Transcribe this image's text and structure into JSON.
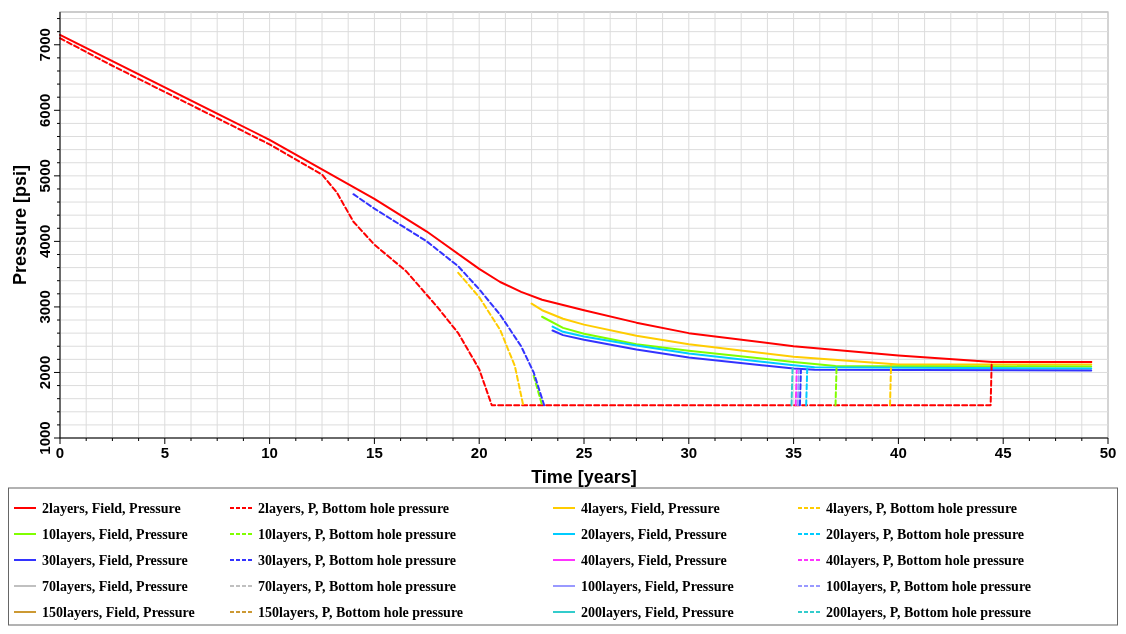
{
  "chart_data": {
    "type": "line",
    "xlabel": "Time [years]",
    "ylabel": "Pressure [psi]",
    "xlim": [
      0,
      50
    ],
    "ylim": [
      1000,
      7500
    ],
    "xticks": [
      0,
      {
        "value": 1.25,
        "label": null
      },
      {
        "value": 2.5,
        "label": null
      },
      {
        "value": 3.75,
        "label": null
      },
      5,
      {
        "value": 6.25,
        "label": null
      },
      {
        "value": 7.5,
        "label": null
      },
      {
        "value": 8.75,
        "label": null
      },
      10,
      {
        "value": 11.25,
        "label": null
      },
      {
        "value": 12.5,
        "label": null
      },
      {
        "value": 13.75,
        "label": null
      },
      15,
      {
        "value": 16.25,
        "label": null
      },
      {
        "value": 17.5,
        "label": null
      },
      {
        "value": 18.75,
        "label": null
      },
      20,
      {
        "value": 21.25,
        "label": null
      },
      {
        "value": 22.5,
        "label": null
      },
      {
        "value": 23.75,
        "label": null
      },
      25,
      {
        "value": 26.25,
        "label": null
      },
      {
        "value": 27.5,
        "label": null
      },
      {
        "value": 28.75,
        "label": null
      },
      30,
      {
        "value": 31.25,
        "label": null
      },
      {
        "value": 32.5,
        "label": null
      },
      {
        "value": 33.75,
        "label": null
      },
      35,
      {
        "value": 36.25,
        "label": null
      },
      {
        "value": 37.5,
        "label": null
      },
      {
        "value": 38.75,
        "label": null
      },
      40,
      {
        "value": 41.25,
        "label": null
      },
      {
        "value": 42.5,
        "label": null
      },
      {
        "value": 43.75,
        "label": null
      },
      45,
      {
        "value": 46.25,
        "label": null
      },
      {
        "value": 47.5,
        "label": null
      },
      {
        "value": 48.75,
        "label": null
      },
      50
    ],
    "yticks": [
      1000,
      {
        "value": 1200,
        "label": null
      },
      {
        "value": 1400,
        "label": null
      },
      {
        "value": 1600,
        "label": null
      },
      {
        "value": 1800,
        "label": null
      },
      2000,
      {
        "value": 2200,
        "label": null
      },
      {
        "value": 2400,
        "label": null
      },
      {
        "value": 2600,
        "label": null
      },
      {
        "value": 2800,
        "label": null
      },
      3000,
      {
        "value": 3200,
        "label": null
      },
      {
        "value": 3400,
        "label": null
      },
      {
        "value": 3600,
        "label": null
      },
      {
        "value": 3800,
        "label": null
      },
      4000,
      {
        "value": 4200,
        "label": null
      },
      {
        "value": 4400,
        "label": null
      },
      {
        "value": 4600,
        "label": null
      },
      {
        "value": 4800,
        "label": null
      },
      5000,
      {
        "value": 5200,
        "label": null
      },
      {
        "value": 5400,
        "label": null
      },
      {
        "value": 5600,
        "label": null
      },
      {
        "value": 5800,
        "label": null
      },
      6000,
      {
        "value": 6200,
        "label": null
      },
      {
        "value": 6400,
        "label": null
      },
      {
        "value": 6600,
        "label": null
      },
      {
        "value": 6800,
        "label": null
      },
      7000,
      {
        "value": 7200,
        "label": null
      },
      {
        "value": 7400,
        "label": null
      }
    ],
    "grid": true,
    "legend": "bottom",
    "marker": "none",
    "series": [
      {
        "name": "2layers, Field, Pressure",
        "color": "#ff0000",
        "line_style": "solid",
        "x": [
          0,
          2.5,
          5,
          7.5,
          10,
          12.5,
          15,
          17.5,
          20,
          21,
          22,
          23,
          25,
          27.5,
          30,
          35,
          40,
          44.5,
          49.2
        ],
        "values": [
          7150,
          6750,
          6350,
          5950,
          5550,
          5100,
          4650,
          4150,
          3580,
          3380,
          3230,
          3110,
          2950,
          2760,
          2600,
          2400,
          2260,
          2160,
          2160
        ]
      },
      {
        "name": "2layers, P, Bottom hole pressure",
        "color": "#ff0000",
        "line_style": "dashed",
        "x": [
          0,
          2.5,
          5,
          7.5,
          10,
          12.5,
          13.2,
          14,
          15,
          16.5,
          18,
          19,
          20,
          20.6,
          44.4,
          44.45,
          49.2
        ],
        "values": [
          7100,
          6680,
          6280,
          5880,
          5480,
          5020,
          4750,
          4300,
          3950,
          3550,
          3000,
          2600,
          2050,
          1500,
          1500,
          2160,
          2160
        ]
      },
      {
        "name": "4layers, Field, Pressure",
        "color": "#ffcc00",
        "line_style": "solid",
        "x": [
          22.5,
          23,
          24,
          25,
          27.5,
          30,
          35,
          40,
          49.2
        ],
        "values": [
          3050,
          2950,
          2820,
          2730,
          2560,
          2430,
          2240,
          2120,
          2120
        ]
      },
      {
        "name": "4layers, P, Bottom hole pressure",
        "color": "#ffcc00",
        "line_style": "dashed",
        "x": [
          19,
          20,
          21,
          21.7,
          22.1,
          30,
          39.6,
          39.65
        ],
        "values": [
          3520,
          3150,
          2650,
          2100,
          1500,
          null,
          1500,
          2120
        ]
      },
      {
        "name": "10layers, Field, Pressure",
        "color": "#80ff00",
        "line_style": "solid",
        "x": [
          23,
          24,
          25,
          27.5,
          30,
          35,
          37,
          49.2
        ],
        "values": [
          2850,
          2680,
          2590,
          2430,
          2330,
          2160,
          2100,
          2090
        ]
      },
      {
        "name": "10layers, P, Bottom hole pressure",
        "color": "#80ff00",
        "line_style": "dashed",
        "x": [
          22.6,
          23,
          30,
          37,
          37.05
        ],
        "values": [
          1950,
          1500,
          null,
          1500,
          2090
        ]
      },
      {
        "name": "20layers, Field, Pressure",
        "color": "#00ccff",
        "line_style": "solid",
        "x": [
          23.5,
          24,
          25,
          27.5,
          30,
          35,
          36,
          49.2
        ],
        "values": [
          2700,
          2620,
          2550,
          2410,
          2290,
          2110,
          2080,
          2060
        ]
      },
      {
        "name": "20layers, P, Bottom hole pressure",
        "color": "#00ccff",
        "line_style": "dashed",
        "x": [
          35.6,
          35.65
        ],
        "values": [
          1500,
          2060
        ]
      },
      {
        "name": "30layers, Field, Pressure",
        "color": "#3333ff",
        "line_style": "solid",
        "x": [
          23.5,
          24,
          25,
          27.5,
          30,
          35,
          36,
          49.2
        ],
        "values": [
          2640,
          2570,
          2500,
          2350,
          2230,
          2060,
          2040,
          2030
        ]
      },
      {
        "name": "30layers, P, Bottom hole pressure",
        "color": "#3333ff",
        "line_style": "dashed",
        "x": [
          14,
          15,
          17.5,
          19,
          20,
          21,
          22,
          22.6,
          23.1,
          30,
          35.3,
          35.35
        ],
        "values": [
          4720,
          4500,
          4000,
          3620,
          3270,
          2880,
          2400,
          2000,
          1500,
          null,
          1500,
          2030
        ]
      },
      {
        "name": "40layers, Field, Pressure",
        "color": "#ff33ff",
        "line_style": "solid"
      },
      {
        "name": "40layers, P, Bottom hole pressure",
        "color": "#ff33ff",
        "line_style": "dashed",
        "x": [
          35.1,
          35.15
        ],
        "values": [
          1500,
          2030
        ]
      },
      {
        "name": "70layers, Field, Pressure",
        "color": "#c0c0c0",
        "line_style": "solid"
      },
      {
        "name": "70layers, P, Bottom hole pressure",
        "color": "#c0c0c0",
        "line_style": "dashed"
      },
      {
        "name": "100layers, Field, Pressure",
        "color": "#9999ff",
        "line_style": "solid"
      },
      {
        "name": "100layers, P, Bottom hole pressure",
        "color": "#9999ff",
        "line_style": "dashed",
        "x": [
          35.2,
          35.25
        ],
        "values": [
          1500,
          2030
        ]
      },
      {
        "name": "150layers, Field, Pressure",
        "color": "#cc9933",
        "line_style": "solid"
      },
      {
        "name": "150layers, P, Bottom hole pressure",
        "color": "#cc9933",
        "line_style": "dashed"
      },
      {
        "name": "200layers, Field, Pressure",
        "color": "#33cccc",
        "line_style": "solid"
      },
      {
        "name": "200layers, P, Bottom hole pressure",
        "color": "#33cccc",
        "line_style": "dashed",
        "x": [
          34.9,
          34.95
        ],
        "values": [
          1500,
          2060
        ]
      }
    ]
  }
}
